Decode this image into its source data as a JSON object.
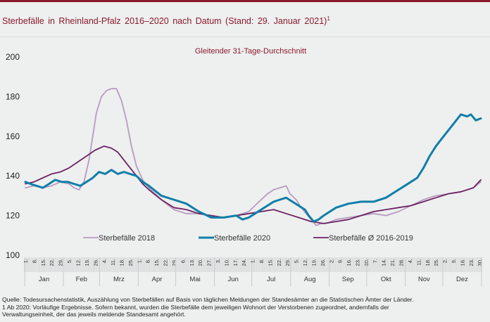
{
  "header": {
    "title": "Sterbefälle  in Rheinland-Pfalz  2016–2020  nach Datum  (Stand:  29. Januar 2021)",
    "title_sup": "1"
  },
  "colors": {
    "accent": "#8b1a2e",
    "series_2018": "#b79cc0",
    "series_2020": "#0f7fa8",
    "series_avg": "#6b2363",
    "background": "#eeefef"
  },
  "chart_data": {
    "type": "line",
    "title": "Gleitender 31-Tage-Durchschnitt",
    "xlabel": "",
    "ylabel": "",
    "ylim": [
      100,
      200
    ],
    "yticks": [
      100,
      120,
      140,
      160,
      180,
      200
    ],
    "grid": false,
    "legend_position": "bottom-inside",
    "x_unit": "day of year (1–366)",
    "months": [
      "Jan",
      "Feb",
      "Mrz",
      "Apr",
      "Mai",
      "Jun",
      "Jul",
      "Aug",
      "Sep",
      "Okt",
      "Nov",
      "Dez"
    ],
    "week_tick_labels": [
      [
        "1.",
        "8.",
        "15.",
        "22.",
        "29."
      ],
      [
        "5.",
        "12.",
        "19.",
        "26."
      ],
      [
        "4.",
        "11.",
        "18.",
        "25."
      ],
      [
        "1.",
        "8.",
        "15.",
        "22.",
        "29."
      ],
      [
        "6.",
        "13.",
        "20.",
        "27."
      ],
      [
        "3.",
        "10.",
        "17.",
        "24."
      ],
      [
        "1.",
        "8.",
        "15.",
        "22.",
        "29."
      ],
      [
        "5.",
        "12.",
        "19.",
        "26."
      ],
      [
        "2.",
        "9.",
        "16.",
        "23.",
        "30."
      ],
      [
        "7.",
        "14.",
        "21.",
        "28."
      ],
      [
        "4.",
        "11.",
        "18.",
        "25."
      ],
      [
        "2.",
        "9.",
        "16.",
        "23.",
        "30."
      ]
    ],
    "series": [
      {
        "name": "Sterbefälle 2018",
        "key": "s2018",
        "x": [
          1,
          8,
          15,
          22,
          29,
          36,
          40,
          44,
          48,
          52,
          55,
          58,
          62,
          66,
          70,
          74,
          78,
          82,
          86,
          90,
          95,
          100,
          110,
          120,
          130,
          140,
          150,
          160,
          170,
          180,
          190,
          195,
          200,
          205,
          210,
          213,
          218,
          222,
          226,
          230,
          234,
          238,
          242,
          250,
          260,
          270,
          280,
          290,
          300,
          310,
          320,
          330,
          340,
          350,
          360,
          366
        ],
        "values": [
          134,
          135,
          134,
          135,
          137,
          136,
          134,
          133,
          137,
          148,
          160,
          172,
          180,
          183,
          184,
          184,
          178,
          168,
          155,
          145,
          138,
          134,
          128,
          123,
          121,
          121,
          120,
          119,
          120,
          122,
          128,
          131,
          133,
          134,
          135,
          131,
          128,
          124,
          121,
          118,
          115,
          116,
          116,
          118,
          119,
          120,
          121,
          120,
          122,
          125,
          128,
          130,
          131,
          132,
          134,
          137
        ]
      },
      {
        "name": "Sterbefälle 2020",
        "key": "s2020",
        "x": [
          1,
          5,
          10,
          15,
          20,
          25,
          30,
          35,
          40,
          45,
          50,
          55,
          60,
          65,
          70,
          75,
          80,
          85,
          90,
          95,
          100,
          110,
          120,
          130,
          140,
          150,
          160,
          170,
          175,
          180,
          185,
          190,
          195,
          200,
          205,
          210,
          215,
          220,
          225,
          228,
          232,
          236,
          240,
          250,
          260,
          270,
          280,
          290,
          300,
          305,
          310,
          315,
          320,
          325,
          330,
          335,
          340,
          345,
          350,
          355,
          358,
          362,
          366
        ],
        "values": [
          137,
          136,
          135,
          134,
          136,
          138,
          137,
          137,
          136,
          135,
          137,
          139,
          142,
          141,
          143,
          141,
          142,
          141,
          140,
          137,
          135,
          130,
          128,
          126,
          122,
          119,
          119,
          120,
          118,
          119,
          121,
          123,
          125,
          127,
          128,
          129,
          127,
          125,
          123,
          120,
          117,
          118,
          120,
          124,
          126,
          127,
          127,
          129,
          133,
          135,
          137,
          139,
          144,
          150,
          155,
          159,
          163,
          167,
          171,
          170,
          171,
          168,
          169
        ]
      },
      {
        "name": "Sterbefälle Ø 2016-2019",
        "key": "avg",
        "x": [
          1,
          8,
          15,
          22,
          29,
          36,
          43,
          50,
          57,
          64,
          70,
          75,
          80,
          85,
          90,
          95,
          100,
          110,
          120,
          130,
          140,
          150,
          160,
          170,
          180,
          190,
          200,
          210,
          220,
          230,
          240,
          250,
          260,
          270,
          280,
          290,
          300,
          310,
          320,
          330,
          340,
          350,
          360,
          366
        ],
        "values": [
          136,
          137,
          139,
          141,
          142,
          144,
          147,
          150,
          153,
          155,
          154,
          152,
          148,
          144,
          140,
          136,
          133,
          128,
          124,
          123,
          121,
          120,
          119,
          120,
          121,
          122,
          123,
          121,
          119,
          117,
          116,
          117,
          118,
          120,
          122,
          123,
          124,
          125,
          127,
          129,
          131,
          132,
          134,
          138
        ]
      }
    ]
  },
  "footnotes": {
    "source": "Quelle: Todesursachenstatistik,  Auszählung von Sterbefällen  auf Basis von täglichen Meldungen  der Standesämter an die Statistischen Ämter der Länder.",
    "note1": "1 Ab 2020:  Vorläufige  Ergebnisse.  Sofern  bekannt,  wurden die Sterbefälle dem jeweiligen  Wohnort der Verstorbenen  zugeordnet,  andernfalls  der",
    "note2": "Verwaltungseinheit,  der das jeweils meldende Standesamt angehört."
  }
}
